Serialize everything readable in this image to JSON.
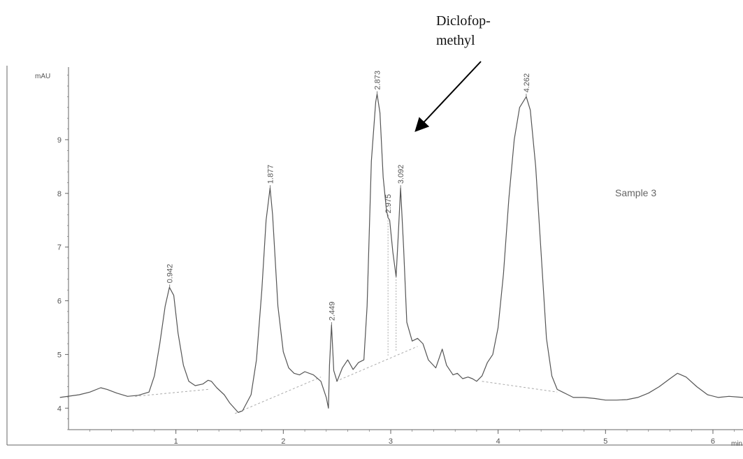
{
  "annotation": {
    "line1": "Diclofop-",
    "line2": "methyl"
  },
  "sample_label": "Sample 3",
  "colors": {
    "trace": "#555555",
    "axis": "#666666",
    "baseline": "#aaaaaa",
    "arrow": "#000000"
  },
  "chart_data": {
    "type": "line",
    "title": "",
    "ylabel": "mAU",
    "xlabel": "min",
    "xlim": [
      0,
      6.28
    ],
    "ylim": [
      3.6,
      10.3
    ],
    "xticks": [
      1,
      2,
      3,
      4,
      5,
      6
    ],
    "yticks": [
      4,
      5,
      6,
      7,
      8,
      9
    ],
    "grid": false,
    "series": [
      {
        "x": [
          -0.08,
          0.1,
          0.2,
          0.3,
          0.36,
          0.45,
          0.55,
          0.65,
          0.75,
          0.8,
          0.85,
          0.9,
          0.94,
          0.98,
          1.02,
          1.07,
          1.12,
          1.18,
          1.25,
          1.3,
          1.33,
          1.38,
          1.45,
          1.5,
          1.58,
          1.62,
          1.7,
          1.75,
          1.8,
          1.84,
          1.877,
          1.9,
          1.95,
          2.0,
          2.05,
          2.1,
          2.15,
          2.2,
          2.28,
          2.35,
          2.4,
          2.42,
          2.43,
          2.449,
          2.47,
          2.5,
          2.55,
          2.6,
          2.65,
          2.7,
          2.75,
          2.78,
          2.82,
          2.86,
          2.873,
          2.9,
          2.93,
          2.96,
          2.975,
          2.99,
          3.02,
          3.05,
          3.07,
          3.092,
          3.12,
          3.15,
          3.2,
          3.25,
          3.3,
          3.35,
          3.42,
          3.48,
          3.52,
          3.58,
          3.62,
          3.67,
          3.72,
          3.76,
          3.8,
          3.85,
          3.9,
          3.95,
          4.0,
          4.05,
          4.1,
          4.15,
          4.2,
          4.262,
          4.3,
          4.35,
          4.4,
          4.45,
          4.5,
          4.55,
          4.6,
          4.65,
          4.7,
          4.8,
          4.9,
          5.0,
          5.1,
          5.2,
          5.3,
          5.4,
          5.5,
          5.6,
          5.67,
          5.75,
          5.85,
          5.95,
          6.05,
          6.15,
          6.28
        ],
        "y": [
          4.2,
          4.25,
          4.3,
          4.38,
          4.35,
          4.28,
          4.22,
          4.24,
          4.3,
          4.6,
          5.2,
          5.9,
          6.25,
          6.1,
          5.4,
          4.8,
          4.5,
          4.42,
          4.45,
          4.52,
          4.5,
          4.38,
          4.25,
          4.1,
          3.92,
          3.95,
          4.25,
          4.9,
          6.2,
          7.5,
          8.1,
          7.6,
          5.9,
          5.05,
          4.75,
          4.65,
          4.62,
          4.68,
          4.62,
          4.5,
          4.2,
          4.0,
          4.8,
          5.55,
          4.7,
          4.5,
          4.75,
          4.9,
          4.72,
          4.85,
          4.9,
          5.9,
          8.6,
          9.7,
          9.85,
          9.5,
          8.3,
          7.7,
          7.55,
          7.5,
          6.9,
          6.45,
          7.2,
          8.1,
          7.0,
          5.6,
          5.25,
          5.3,
          5.2,
          4.9,
          4.75,
          5.1,
          4.8,
          4.62,
          4.65,
          4.55,
          4.58,
          4.55,
          4.5,
          4.6,
          4.85,
          5.0,
          5.5,
          6.5,
          7.9,
          9.0,
          9.6,
          9.8,
          9.55,
          8.5,
          6.9,
          5.3,
          4.6,
          4.35,
          4.3,
          4.25,
          4.2,
          4.2,
          4.18,
          4.15,
          4.15,
          4.16,
          4.2,
          4.28,
          4.4,
          4.55,
          4.65,
          4.58,
          4.4,
          4.25,
          4.2,
          4.22,
          4.2
        ]
      }
    ],
    "baselines": [
      {
        "x": [
          0.62,
          1.3
        ],
        "y": [
          4.22,
          4.35
        ]
      },
      {
        "x": [
          1.55,
          2.35
        ],
        "y": [
          3.9,
          4.58
        ]
      },
      {
        "x": [
          2.49,
          3.25
        ],
        "y": [
          4.5,
          5.15
        ]
      },
      {
        "x": [
          3.85,
          4.55
        ],
        "y": [
          4.5,
          4.3
        ]
      }
    ],
    "peak_drops": [
      {
        "x": 2.975,
        "y_top": 7.5,
        "y_base": 4.98
      },
      {
        "x": 3.05,
        "y_top": 6.45,
        "y_base": 5.06
      }
    ],
    "peak_labels": [
      {
        "x": 0.942,
        "y": 6.25,
        "label": "0.942"
      },
      {
        "x": 1.877,
        "y": 8.1,
        "label": "1.877"
      },
      {
        "x": 2.449,
        "y": 5.55,
        "label": "2.449"
      },
      {
        "x": 2.873,
        "y": 9.85,
        "label": "2.873"
      },
      {
        "x": 2.975,
        "y": 7.55,
        "label": "2.975"
      },
      {
        "x": 3.092,
        "y": 8.1,
        "label": "3.092"
      },
      {
        "x": 4.262,
        "y": 9.8,
        "label": "4.262"
      }
    ]
  }
}
